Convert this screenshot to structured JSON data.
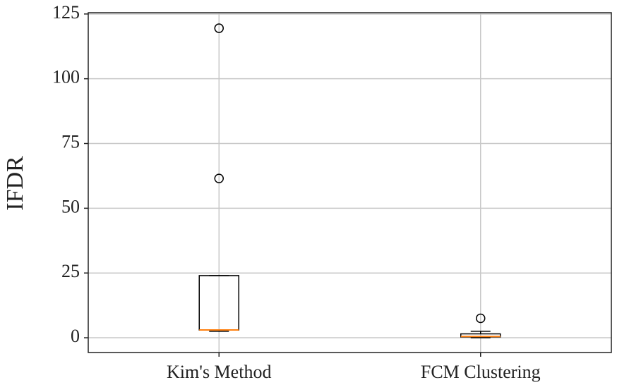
{
  "chart_data": {
    "type": "box",
    "y_label": "IFDR",
    "categories": [
      "Kim's Method",
      "FCM Clustering"
    ],
    "boxes": [
      {
        "whislo": 2.5,
        "q1": 3,
        "med": 3,
        "q3": 24,
        "whishi": 24,
        "fliers": [
          61.5,
          119.5
        ]
      },
      {
        "whislo": 0,
        "q1": 0.3,
        "med": 0.5,
        "q3": 1.5,
        "whishi": 2.5,
        "fliers": [
          7.5
        ]
      }
    ],
    "box_color": "#000000",
    "median_color": "#ff7f0e",
    "ylim": [
      -5.7,
      125.5
    ],
    "yticks": [
      0,
      25,
      50,
      75,
      100,
      125
    ],
    "grid": true
  }
}
